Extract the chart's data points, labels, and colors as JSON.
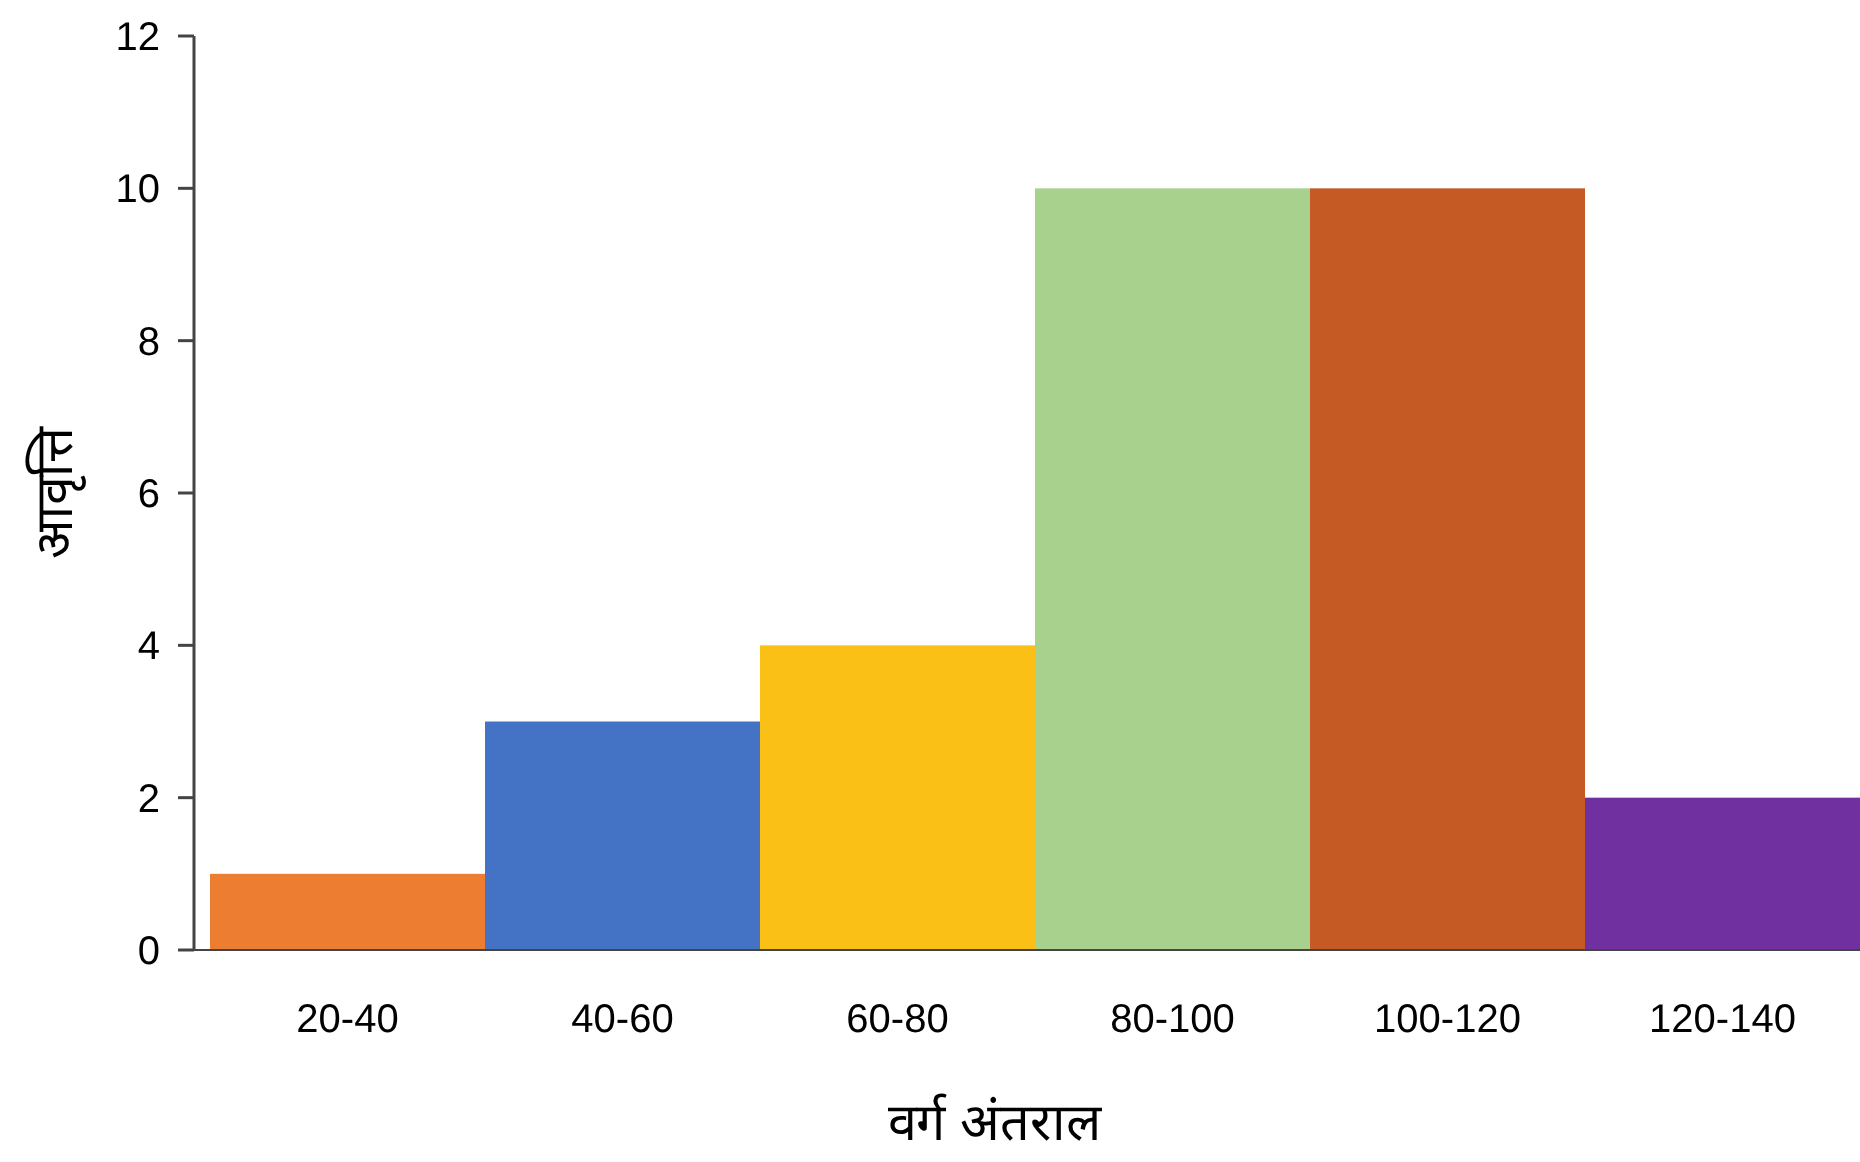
{
  "chart_data": {
    "type": "bar",
    "categories": [
      "20-40",
      "40-60",
      "60-80",
      "80-100",
      "100-120",
      "120-140"
    ],
    "values": [
      1,
      3,
      4,
      10,
      10,
      2
    ],
    "colors": [
      "#ed7d31",
      "#4472c4",
      "#fbc015",
      "#a9d18e",
      "#c55a24",
      "#7030a0"
    ],
    "xlabel": "वर्ग  अंतराल",
    "ylabel": "आवृत्ति",
    "ylim": [
      0,
      12
    ],
    "yticks": [
      0,
      2,
      4,
      6,
      8,
      10,
      12
    ]
  }
}
